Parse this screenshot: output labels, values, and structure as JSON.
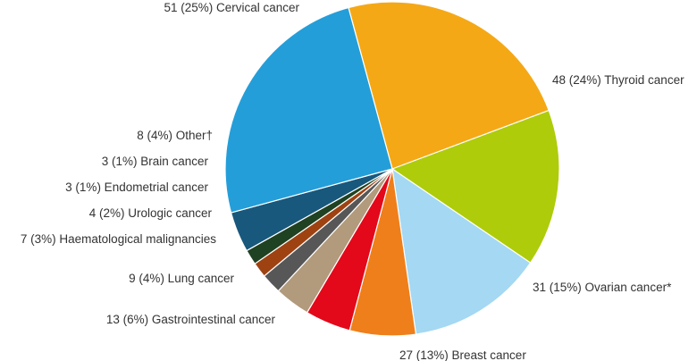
{
  "chart_data": {
    "type": "pie",
    "title": "",
    "start_angle_deg": -15.2,
    "direction": "clockwise",
    "slices": [
      {
        "name": "Thyroid cancer",
        "value": 48,
        "percent": "24%",
        "label": "48 (24%) Thyroid cancer",
        "color": "#F5A816"
      },
      {
        "name": "Ovarian cancer",
        "value": 31,
        "percent": "15%",
        "label": "31 (15%) Ovarian cancer*",
        "color": "#AECC0A"
      },
      {
        "name": "Breast cancer",
        "value": 27,
        "percent": "13%",
        "label": "27 (13%) Breast cancer",
        "color": "#A4D8F3"
      },
      {
        "name": "Gastrointestinal cancer",
        "value": 13,
        "percent": "6%",
        "label": "13 (6%) Gastrointestinal cancer",
        "color": "#EF7F1A"
      },
      {
        "name": "Lung cancer",
        "value": 9,
        "percent": "4%",
        "label": "9 (4%) Lung cancer",
        "color": "#E3091A"
      },
      {
        "name": "Haematological malignancies",
        "value": 7,
        "percent": "3%",
        "label": "7 (3%) Haematological malignancies",
        "color": "#B29A7C"
      },
      {
        "name": "Urologic cancer",
        "value": 4,
        "percent": "2%",
        "label": "4 (2%) Urologic cancer",
        "color": "#575757"
      },
      {
        "name": "Endometrial cancer",
        "value": 3,
        "percent": "1%",
        "label": "3 (1%) Endometrial cancer",
        "color": "#9E4212"
      },
      {
        "name": "Brain cancer",
        "value": 3,
        "percent": "1%",
        "label": "3 (1%) Brain cancer",
        "color": "#1F4222"
      },
      {
        "name": "Other",
        "value": 8,
        "percent": "4%",
        "label": "8 (4%) Other†",
        "color": "#18587C"
      },
      {
        "name": "Cervical cancer",
        "value": 51,
        "percent": "25%",
        "label": "51 (25%) Cervical cancer",
        "color": "#249ED9"
      }
    ]
  }
}
